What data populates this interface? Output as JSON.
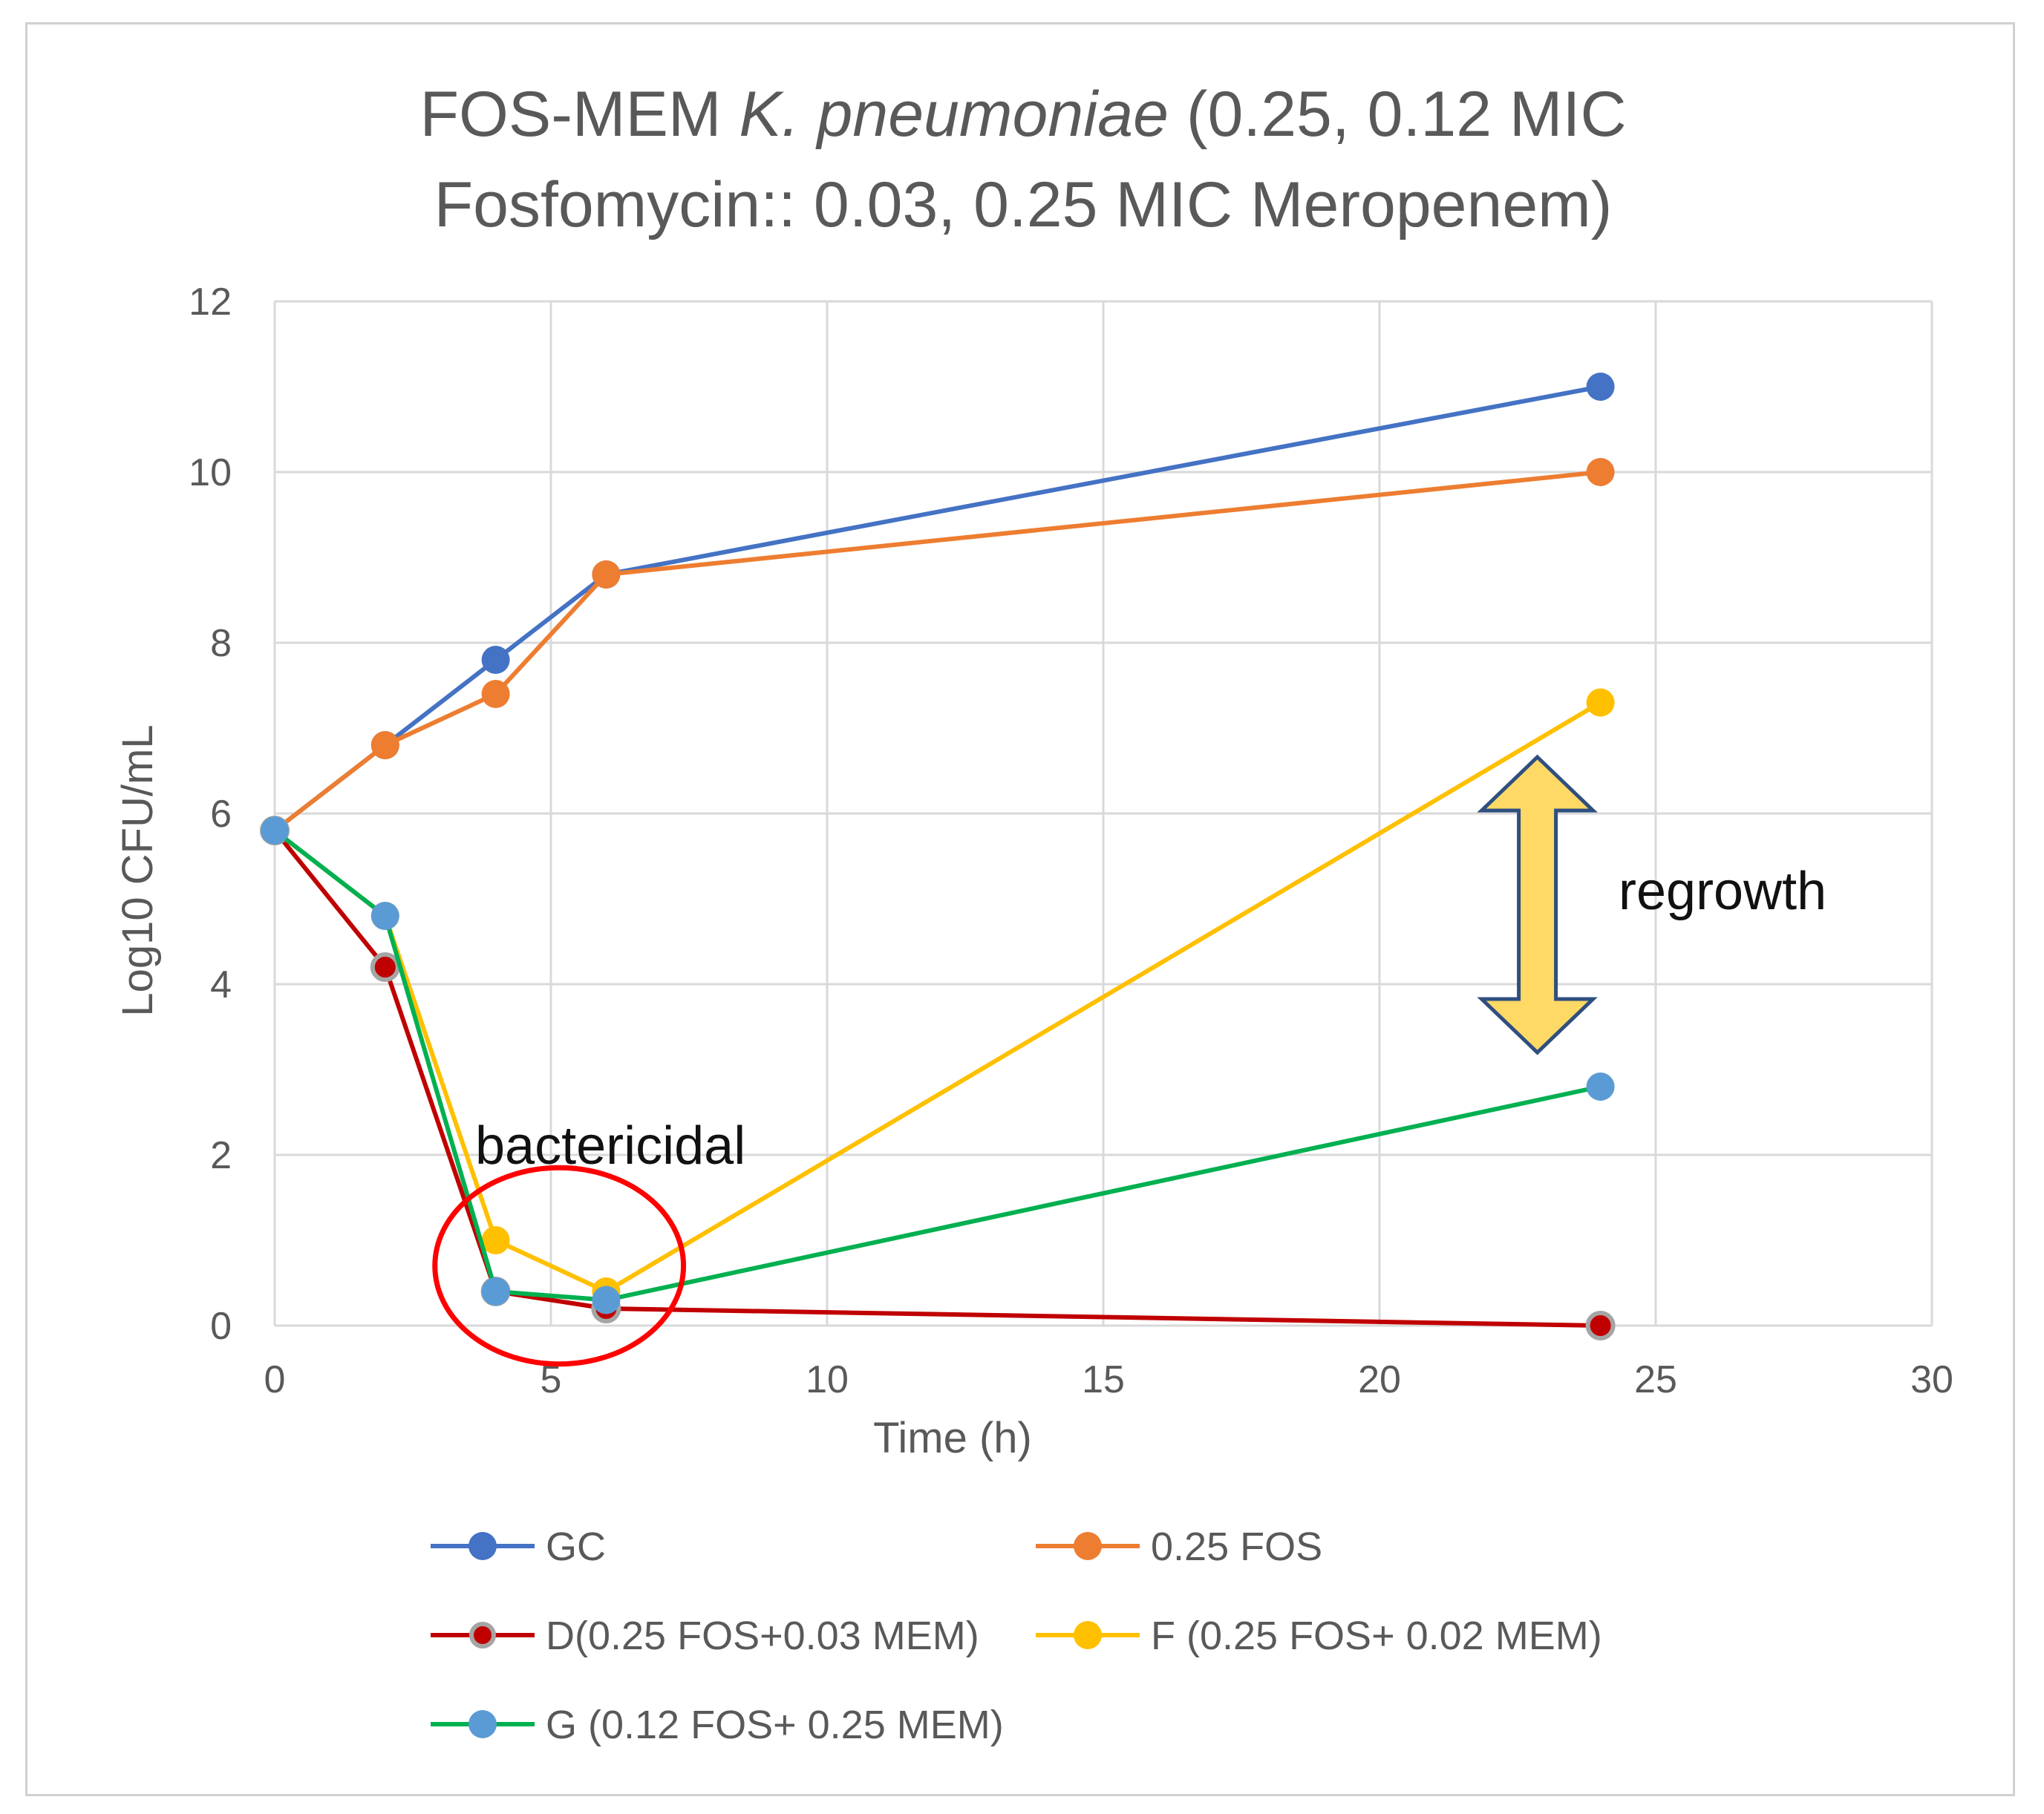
{
  "chart_data": {
    "type": "line",
    "title_lines": [
      {
        "parts": [
          "FOS-MEM ",
          "K. pneumoniae",
          " (0.25, 0.12 MIC"
        ]
      },
      {
        "parts": [
          "Fosfomycin:: 0.03, 0.25 MIC Meropenem)"
        ]
      }
    ],
    "xlabel": "Time (h)",
    "ylabel": "Log10 CFU/mL",
    "xlim": [
      0,
      30
    ],
    "ylim": [
      0,
      12
    ],
    "xticks": [
      0,
      5,
      10,
      15,
      20,
      25,
      30
    ],
    "yticks": [
      0,
      2,
      4,
      6,
      8,
      10,
      12
    ],
    "grid": true,
    "legend_position": "bottom",
    "series": [
      {
        "name": "GC",
        "color": "#4472C4",
        "marker_color": "#4472C4",
        "x": [
          0,
          2,
          4,
          6,
          24
        ],
        "y": [
          5.8,
          6.8,
          7.8,
          8.8,
          11.0
        ]
      },
      {
        "name": "0.25 FOS",
        "color": "#ED7D31",
        "marker_color": "#ED7D31",
        "x": [
          0,
          2,
          4,
          6,
          24
        ],
        "y": [
          5.8,
          6.8,
          7.4,
          8.8,
          10.0
        ]
      },
      {
        "name": "D(0.25 FOS+0.03 MEM)",
        "color": "#C00000",
        "marker_color": "#C00000",
        "marker_edge": "#A5A5A5",
        "x": [
          0,
          2,
          4,
          6,
          24
        ],
        "y": [
          5.8,
          4.2,
          0.4,
          0.2,
          0.0
        ]
      },
      {
        "name": "F (0.25 FOS+ 0.02 MEM)",
        "color": "#FFC000",
        "marker_color": "#FFC000",
        "x": [
          0,
          2,
          4,
          6,
          24
        ],
        "y": [
          5.8,
          4.8,
          1.0,
          0.4,
          7.3
        ]
      },
      {
        "name": "G (0.12 FOS+ 0.25 MEM)",
        "color": "#00B050",
        "marker_color": "#5B9BD5",
        "x": [
          0,
          2,
          4,
          6,
          24
        ],
        "y": [
          5.8,
          4.8,
          0.4,
          0.3,
          2.8
        ]
      }
    ],
    "annotations": {
      "bactericidal_label": "bactericidal",
      "regrowth_label": "regrowth",
      "regrowth_arrow": {
        "x": 24,
        "y_from": 2.8,
        "y_to": 7.3,
        "color": "#FFD966",
        "edge": "#2F4F7F"
      },
      "circle": {
        "x_center": 5.15,
        "y_center": 0.7,
        "x_radius": 2.25,
        "y_radius": 1.15,
        "color": "#FF0000"
      }
    }
  }
}
